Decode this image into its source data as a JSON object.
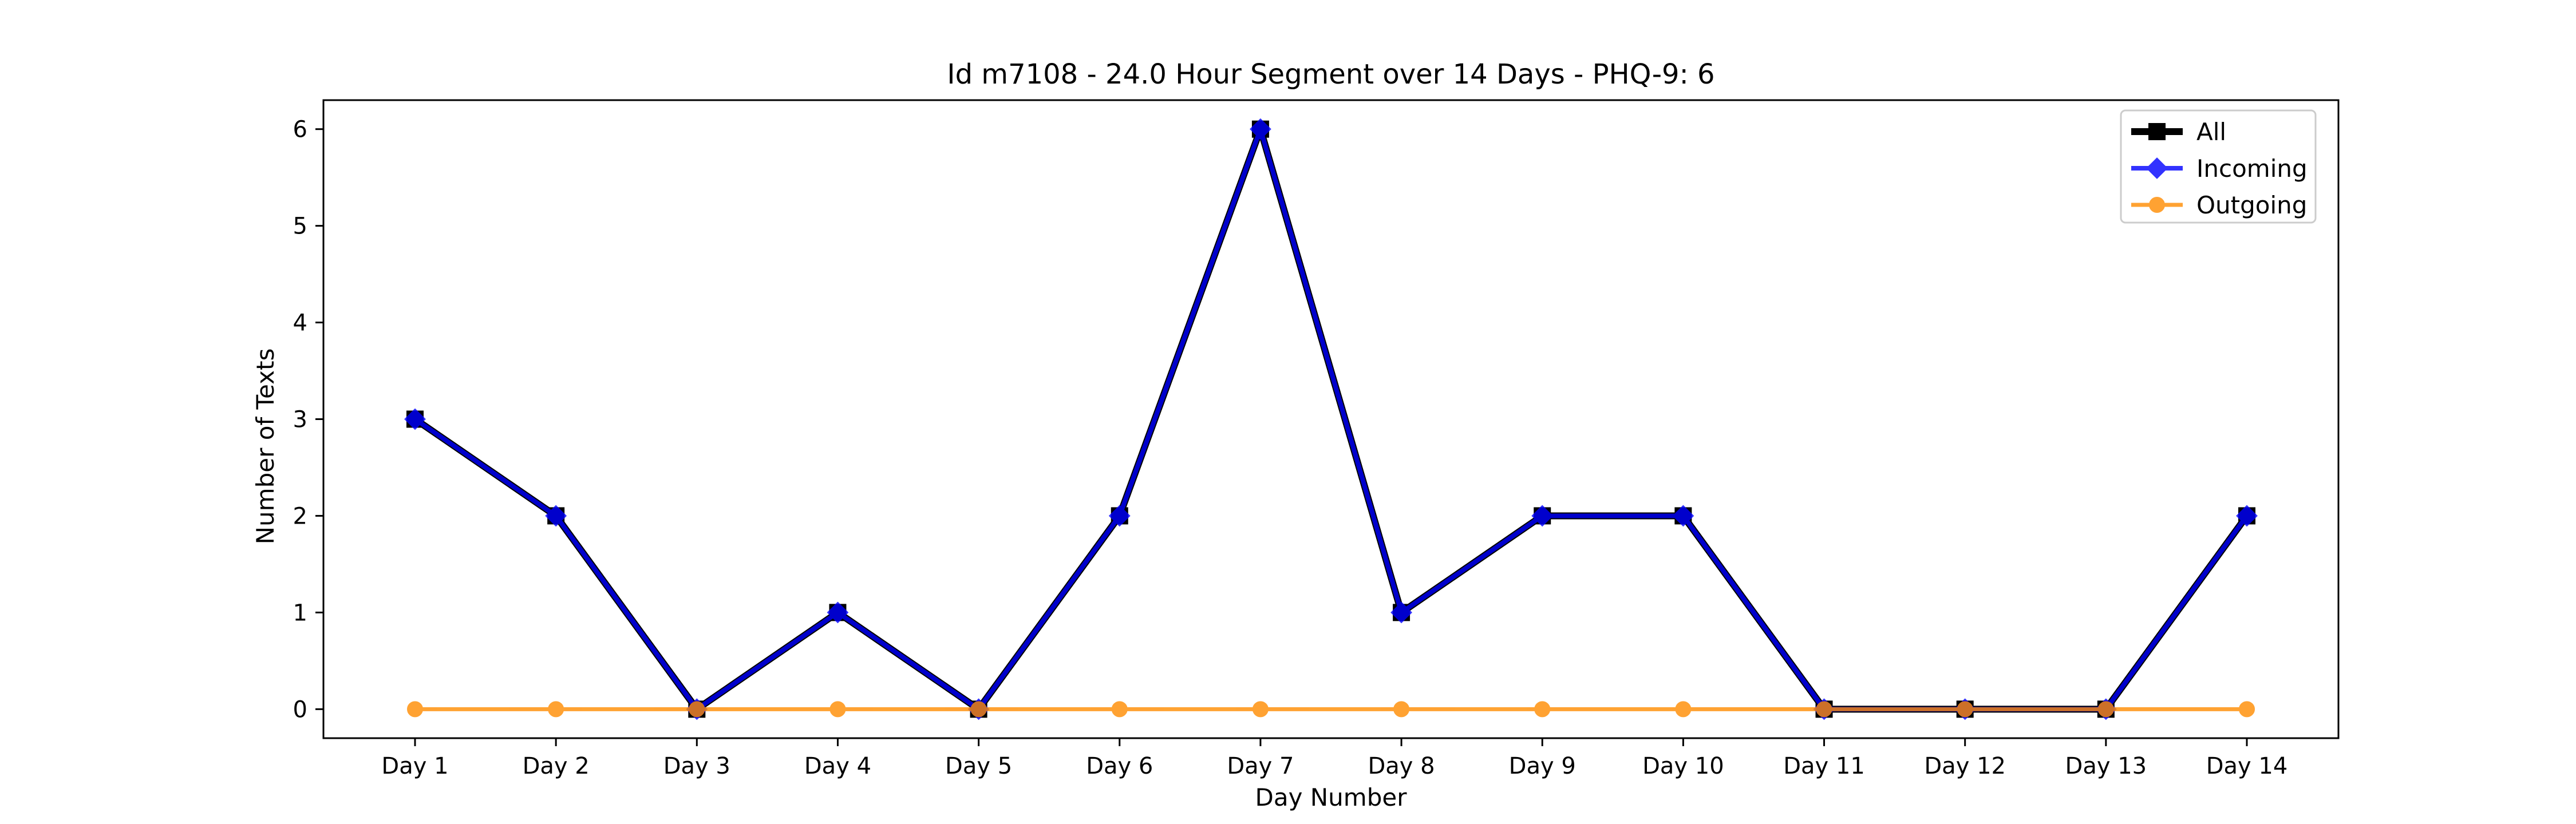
{
  "chart_data": {
    "type": "line",
    "title": "Id m7108 - 24.0 Hour Segment over 14 Days - PHQ-9: 6",
    "xlabel": "Day Number",
    "ylabel": "Number of Texts",
    "categories": [
      "Day 1",
      "Day 2",
      "Day 3",
      "Day 4",
      "Day 5",
      "Day 6",
      "Day 7",
      "Day 8",
      "Day 9",
      "Day 10",
      "Day 11",
      "Day 12",
      "Day 13",
      "Day 14"
    ],
    "ylim": [
      -0.3,
      6.3
    ],
    "yticks": [
      0,
      1,
      2,
      3,
      4,
      5,
      6
    ],
    "grid": false,
    "legend_position": "top-right",
    "series": [
      {
        "name": "All",
        "color": "#000000",
        "marker": "square",
        "values": [
          3,
          2,
          0,
          1,
          0,
          2,
          6,
          1,
          2,
          2,
          0,
          0,
          0,
          2
        ]
      },
      {
        "name": "Incoming",
        "color": "#0000ff",
        "marker": "diamond",
        "values": [
          3,
          2,
          0,
          1,
          0,
          2,
          6,
          1,
          2,
          2,
          0,
          0,
          0,
          2
        ]
      },
      {
        "name": "Outgoing",
        "color": "#ff8c00",
        "marker": "circle",
        "values": [
          0,
          0,
          0,
          0,
          0,
          0,
          0,
          0,
          0,
          0,
          0,
          0,
          0,
          0
        ]
      }
    ]
  }
}
